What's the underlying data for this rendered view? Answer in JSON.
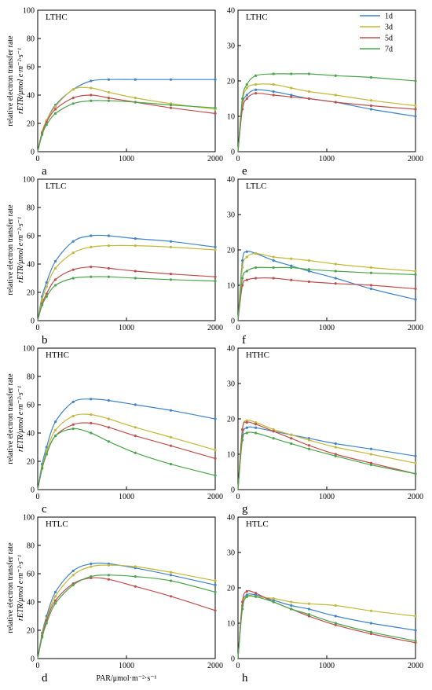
{
  "colors": {
    "1d": "#3f84c9",
    "3d": "#c2b93a",
    "5d": "#c0504d",
    "7d": "#4aa64a"
  },
  "legend": [
    "1d",
    "3d",
    "5d",
    "7d"
  ],
  "y_label_line1": "relative electron transfer rate",
  "y_label_line2": "rETR/μmol e·m⁻²·s⁻¹",
  "x_label": "PAR/μmol·m⁻²·s⁻¹",
  "chart_data": [
    {
      "type": "line",
      "letter": "a",
      "title": "LTHC",
      "xlim": [
        0,
        2000
      ],
      "ylim": [
        0,
        100
      ],
      "yticks": [
        0,
        20,
        40,
        60,
        80,
        100
      ],
      "xticks": [
        0,
        1000,
        2000
      ],
      "x": [
        0,
        50,
        100,
        200,
        400,
        600,
        800,
        1100,
        1500,
        2000
      ],
      "series": [
        {
          "name": "1d",
          "values": [
            0,
            14,
            22,
            33,
            44,
            50,
            51,
            51,
            51,
            51
          ]
        },
        {
          "name": "3d",
          "values": [
            0,
            14,
            22,
            32,
            44,
            45,
            42,
            38,
            34,
            30
          ]
        },
        {
          "name": "5d",
          "values": [
            0,
            13,
            21,
            30,
            38,
            40,
            38,
            35,
            31,
            27
          ]
        },
        {
          "name": "7d",
          "values": [
            0,
            12,
            19,
            27,
            34,
            36,
            36,
            35,
            33,
            31
          ]
        }
      ]
    },
    {
      "type": "line",
      "letter": "e",
      "title": "LTHC",
      "xlim": [
        0,
        2000
      ],
      "ylim": [
        0,
        40
      ],
      "yticks": [
        0,
        10,
        20,
        30,
        40
      ],
      "xticks": [
        0,
        1000,
        2000
      ],
      "x": [
        0,
        50,
        100,
        200,
        400,
        600,
        800,
        1100,
        1500,
        2000
      ],
      "series": [
        {
          "name": "1d",
          "values": [
            0,
            13,
            16,
            17.5,
            17,
            16,
            15,
            14,
            12,
            10
          ]
        },
        {
          "name": "3d",
          "values": [
            0,
            14,
            18,
            19,
            19,
            18,
            17,
            16,
            14.5,
            13
          ]
        },
        {
          "name": "5d",
          "values": [
            0,
            12,
            15,
            16.5,
            16,
            15.5,
            15,
            14,
            13,
            12
          ]
        },
        {
          "name": "7d",
          "values": [
            0,
            15,
            19,
            21.5,
            22,
            22,
            22,
            21.5,
            21,
            20
          ]
        }
      ]
    },
    {
      "type": "line",
      "letter": "b",
      "title": "LTLC",
      "xlim": [
        0,
        2000
      ],
      "ylim": [
        0,
        100
      ],
      "yticks": [
        0,
        20,
        40,
        60,
        80,
        100
      ],
      "xticks": [
        0,
        1000,
        2000
      ],
      "x": [
        0,
        50,
        100,
        200,
        400,
        600,
        800,
        1100,
        1500,
        2000
      ],
      "series": [
        {
          "name": "1d",
          "values": [
            0,
            17,
            27,
            42,
            56,
            60,
            60,
            58,
            56,
            52
          ]
        },
        {
          "name": "3d",
          "values": [
            0,
            15,
            24,
            37,
            48,
            52,
            53,
            53,
            52,
            50
          ]
        },
        {
          "name": "5d",
          "values": [
            0,
            12,
            19,
            29,
            36,
            38,
            37,
            35,
            33,
            31
          ]
        },
        {
          "name": "7d",
          "values": [
            0,
            11,
            17,
            25,
            30,
            31,
            31,
            30,
            29,
            28
          ]
        }
      ]
    },
    {
      "type": "line",
      "letter": "f",
      "title": "LTLC",
      "xlim": [
        0,
        2000
      ],
      "ylim": [
        0,
        40
      ],
      "yticks": [
        0,
        10,
        20,
        30,
        40
      ],
      "xticks": [
        0,
        1000,
        2000
      ],
      "x": [
        0,
        50,
        100,
        200,
        400,
        600,
        800,
        1100,
        1500,
        2000
      ],
      "series": [
        {
          "name": "1d",
          "values": [
            0,
            17,
            19.5,
            19,
            17,
            15.5,
            14,
            12,
            9,
            6
          ]
        },
        {
          "name": "3d",
          "values": [
            0,
            15,
            18,
            19,
            18,
            17.5,
            17,
            16,
            15,
            14
          ]
        },
        {
          "name": "5d",
          "values": [
            0,
            10,
            11.5,
            12,
            12,
            11.5,
            11,
            10.5,
            10,
            9
          ]
        },
        {
          "name": "7d",
          "values": [
            0,
            12,
            14,
            15,
            15,
            15,
            14.5,
            14,
            13.5,
            13
          ]
        }
      ]
    },
    {
      "type": "line",
      "letter": "c",
      "title": "HTHC",
      "xlim": [
        0,
        2000
      ],
      "ylim": [
        0,
        100
      ],
      "yticks": [
        0,
        20,
        40,
        60,
        80,
        100
      ],
      "xticks": [
        0,
        1000,
        2000
      ],
      "x": [
        0,
        50,
        100,
        200,
        400,
        600,
        800,
        1100,
        1500,
        2000
      ],
      "series": [
        {
          "name": "1d",
          "values": [
            0,
            18,
            30,
            48,
            62,
            64,
            63,
            60,
            56,
            50
          ]
        },
        {
          "name": "3d",
          "values": [
            0,
            16,
            27,
            42,
            52,
            53,
            50,
            44,
            37,
            28
          ]
        },
        {
          "name": "5d",
          "values": [
            0,
            15,
            25,
            38,
            46,
            47,
            44,
            38,
            31,
            22
          ]
        },
        {
          "name": "7d",
          "values": [
            0,
            15,
            25,
            38,
            43,
            40,
            34,
            26,
            18,
            10
          ]
        }
      ]
    },
    {
      "type": "line",
      "letter": "g",
      "title": "HTHC",
      "xlim": [
        0,
        2000
      ],
      "ylim": [
        0,
        40
      ],
      "yticks": [
        0,
        10,
        20,
        30,
        40
      ],
      "xticks": [
        0,
        1000,
        2000
      ],
      "x": [
        0,
        50,
        100,
        200,
        400,
        600,
        800,
        1100,
        1500,
        2000
      ],
      "series": [
        {
          "name": "1d",
          "values": [
            0,
            15,
            17.5,
            17.5,
            16.5,
            15.5,
            14.5,
            13,
            11.5,
            9.5
          ]
        },
        {
          "name": "3d",
          "values": [
            0,
            17,
            19.5,
            19,
            17,
            15.5,
            14,
            12,
            10,
            7.5
          ]
        },
        {
          "name": "5d",
          "values": [
            0,
            17,
            19,
            18.5,
            16.5,
            14.5,
            12.5,
            10,
            7.5,
            4.5
          ]
        },
        {
          "name": "7d",
          "values": [
            0,
            14,
            16,
            16,
            14.5,
            13,
            11.5,
            9.5,
            7,
            4.5
          ]
        }
      ]
    },
    {
      "type": "line",
      "letter": "d",
      "title": "HTLC",
      "xlim": [
        0,
        2000
      ],
      "ylim": [
        0,
        100
      ],
      "yticks": [
        0,
        20,
        40,
        60,
        80,
        100
      ],
      "xticks": [
        0,
        1000,
        2000
      ],
      "x": [
        0,
        50,
        100,
        200,
        400,
        600,
        800,
        1100,
        1500,
        2000
      ],
      "series": [
        {
          "name": "1d",
          "values": [
            0,
            18,
            30,
            47,
            62,
            67,
            67,
            64,
            59,
            52
          ]
        },
        {
          "name": "3d",
          "values": [
            0,
            17,
            28,
            44,
            59,
            65,
            66,
            65,
            61,
            55
          ]
        },
        {
          "name": "5d",
          "values": [
            0,
            16,
            27,
            41,
            53,
            57,
            56,
            51,
            44,
            34
          ]
        },
        {
          "name": "7d",
          "values": [
            0,
            15,
            25,
            39,
            52,
            58,
            59,
            58,
            55,
            47
          ]
        }
      ]
    },
    {
      "type": "line",
      "letter": "h",
      "title": "HTLC",
      "xlim": [
        0,
        2000
      ],
      "ylim": [
        0,
        40
      ],
      "yticks": [
        0,
        10,
        20,
        30,
        40
      ],
      "xticks": [
        0,
        1000,
        2000
      ],
      "x": [
        0,
        50,
        100,
        200,
        400,
        600,
        800,
        1100,
        1500,
        2000
      ],
      "series": [
        {
          "name": "1d",
          "values": [
            0,
            15,
            18,
            18,
            16.5,
            15,
            14,
            12,
            10,
            8
          ]
        },
        {
          "name": "3d",
          "values": [
            0,
            15,
            17.5,
            17.5,
            17,
            16,
            15.5,
            15,
            13.5,
            12
          ]
        },
        {
          "name": "5d",
          "values": [
            0,
            16,
            19,
            18.5,
            16,
            14,
            12,
            9.5,
            7,
            4.5
          ]
        },
        {
          "name": "7d",
          "values": [
            0,
            14,
            17.5,
            17.5,
            16,
            14,
            12.5,
            10,
            7.5,
            5
          ]
        }
      ]
    }
  ]
}
